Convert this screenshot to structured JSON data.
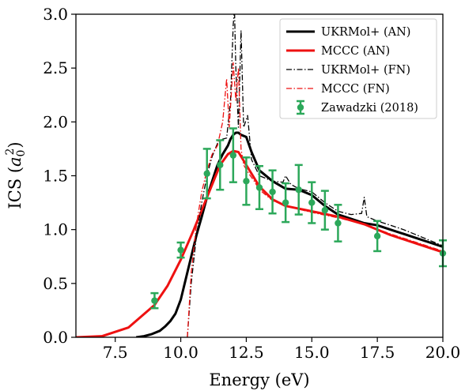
{
  "chart_data": {
    "type": "line",
    "xlabel": "Energy (eV)",
    "ylabel_main": "ICS (",
    "ylabel_sym": "a",
    "ylabel_sub": "0",
    "ylabel_sup": "2",
    "ylabel_close": ")",
    "xlim": [
      6.0,
      20.0
    ],
    "ylim": [
      0.0,
      3.0
    ],
    "x_ticks": [
      7.5,
      10.0,
      12.5,
      15.0,
      17.5,
      20.0
    ],
    "x_tick_labels": [
      "7.5",
      "10.0",
      "12.5",
      "15.0",
      "17.5",
      "20.0"
    ],
    "y_ticks": [
      0.0,
      0.5,
      1.0,
      1.5,
      2.0,
      2.5,
      3.0
    ],
    "y_tick_labels": [
      "0.0",
      "0.5",
      "1.0",
      "1.5",
      "2.0",
      "2.5",
      "3.0"
    ],
    "grid": false,
    "legend_position": "top-right",
    "series": [
      {
        "name": "UKRMol+ (AN)",
        "color": "#000000",
        "style": "solid",
        "x": [
          8.3,
          8.6,
          8.9,
          9.2,
          9.4,
          9.6,
          9.8,
          10.0,
          10.2,
          10.4,
          10.6,
          10.8,
          11.0,
          11.2,
          11.4,
          11.6,
          11.8,
          11.9,
          12.0,
          12.1,
          12.2,
          12.3,
          12.5,
          12.7,
          13.0,
          13.5,
          14.0,
          14.5,
          15.0,
          15.5,
          16.0,
          16.5,
          17.0,
          17.5,
          18.0,
          18.5,
          19.0,
          19.5,
          20.0
        ],
        "y": [
          0.0,
          0.01,
          0.03,
          0.06,
          0.1,
          0.15,
          0.22,
          0.35,
          0.55,
          0.75,
          0.95,
          1.12,
          1.3,
          1.45,
          1.6,
          1.7,
          1.78,
          1.84,
          1.88,
          1.9,
          1.9,
          1.88,
          1.86,
          1.72,
          1.55,
          1.45,
          1.38,
          1.37,
          1.32,
          1.22,
          1.14,
          1.1,
          1.06,
          1.04,
          1.0,
          0.96,
          0.92,
          0.88,
          0.84
        ]
      },
      {
        "name": "MCCC (AN)",
        "color": "#ee1111",
        "style": "solid",
        "x": [
          6.0,
          7.0,
          8.0,
          9.0,
          9.5,
          10.0,
          10.5,
          11.0,
          11.5,
          11.8,
          12.0,
          12.2,
          12.5,
          13.0,
          13.5,
          14.0,
          15.0,
          16.0,
          17.0,
          18.0,
          19.0,
          20.0
        ],
        "y": [
          0.0,
          0.01,
          0.09,
          0.3,
          0.48,
          0.72,
          1.0,
          1.3,
          1.6,
          1.7,
          1.73,
          1.72,
          1.6,
          1.4,
          1.28,
          1.22,
          1.17,
          1.12,
          1.05,
          0.95,
          0.87,
          0.79
        ]
      },
      {
        "name": "UKRMol+ (FN)",
        "color": "#000000",
        "style": "dashdot",
        "x": [
          10.25,
          10.4,
          10.6,
          10.8,
          11.0,
          11.2,
          11.4,
          11.5,
          11.6,
          11.75,
          11.9,
          12.0,
          12.05,
          12.1,
          12.2,
          12.3,
          12.4,
          12.55,
          12.7,
          13.0,
          13.5,
          13.9,
          14.0,
          14.2,
          14.5,
          15.0,
          15.5,
          16.0,
          16.5,
          16.9,
          17.0,
          17.1,
          17.5,
          18.0,
          18.5,
          19.0,
          19.5,
          20.0
        ],
        "y": [
          0.0,
          0.5,
          0.95,
          1.25,
          1.5,
          1.68,
          1.8,
          1.82,
          1.84,
          1.85,
          2.2,
          2.9,
          3.05,
          2.5,
          1.95,
          2.85,
          1.95,
          2.06,
          1.65,
          1.5,
          1.45,
          1.44,
          1.5,
          1.42,
          1.38,
          1.35,
          1.25,
          1.17,
          1.14,
          1.15,
          1.3,
          1.12,
          1.08,
          1.04,
          1.0,
          0.95,
          0.9,
          0.85
        ]
      },
      {
        "name": "MCCC (FN)",
        "color": "#ee1111",
        "style": "dashdot",
        "x": [
          10.25,
          10.4,
          10.6,
          10.8,
          11.0,
          11.2,
          11.4,
          11.6,
          11.75,
          11.85,
          12.0,
          12.1,
          12.2,
          12.3,
          12.4,
          12.6,
          12.8,
          13.0,
          13.5,
          14.0,
          14.5,
          15.0,
          16.0,
          17.0,
          18.0,
          19.0,
          20.0
        ],
        "y": [
          0.0,
          0.6,
          1.05,
          1.35,
          1.55,
          1.7,
          1.78,
          2.0,
          2.4,
          1.95,
          2.55,
          2.2,
          2.5,
          1.75,
          1.6,
          1.52,
          1.45,
          1.37,
          1.27,
          1.22,
          1.19,
          1.16,
          1.11,
          1.05,
          0.96,
          0.88,
          0.8
        ]
      }
    ],
    "points": {
      "name": "Zawadzki (2018)",
      "color": "#2ca85a",
      "x": [
        9.0,
        10.0,
        11.0,
        11.5,
        12.0,
        12.5,
        13.0,
        13.5,
        14.0,
        14.5,
        15.0,
        15.5,
        16.0,
        17.5,
        20.0
      ],
      "y": [
        0.34,
        0.81,
        1.52,
        1.6,
        1.69,
        1.45,
        1.39,
        1.35,
        1.25,
        1.37,
        1.25,
        1.18,
        1.06,
        0.94,
        0.78
      ],
      "err": [
        0.07,
        0.07,
        0.23,
        0.23,
        0.25,
        0.22,
        0.2,
        0.2,
        0.18,
        0.23,
        0.19,
        0.18,
        0.17,
        0.14,
        0.12
      ]
    }
  }
}
